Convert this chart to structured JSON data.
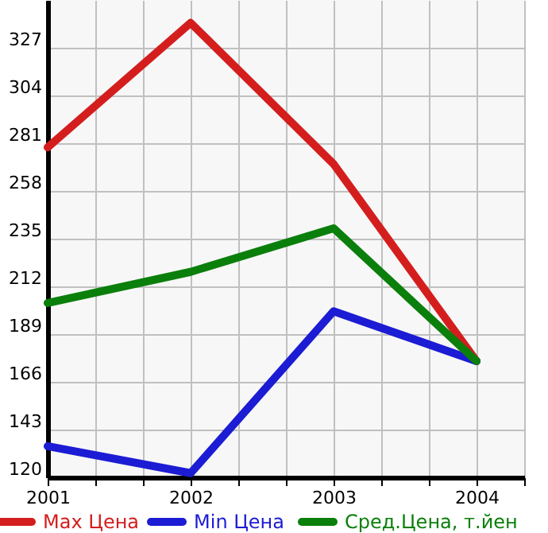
{
  "chart_data": {
    "type": "line",
    "x": [
      2001,
      2002,
      2003,
      2004
    ],
    "series": [
      {
        "name": "Max Цена",
        "color": "#d41e1e",
        "values": [
          279,
          339,
          271,
          176
        ]
      },
      {
        "name": "Min Цена",
        "color": "#1c1cd4",
        "values": [
          135,
          122,
          200,
          176
        ]
      },
      {
        "name": "Сред.Цена, т.йен",
        "color": "#0b7f0b",
        "values": [
          204,
          219,
          240,
          176
        ]
      }
    ],
    "xlim": [
      2001,
      2004.3333
    ],
    "xticks": [
      2001,
      {
        "value": 2001.3333,
        "label": null
      },
      {
        "value": 2001.6667,
        "label": null
      },
      2002,
      {
        "value": 2002.3333,
        "label": null
      },
      {
        "value": 2002.6667,
        "label": null
      },
      2003,
      {
        "value": 2003.3333,
        "label": null
      },
      {
        "value": 2003.6667,
        "label": null
      },
      2004,
      {
        "value": 2004.3333,
        "label": null
      }
    ],
    "ylim": [
      120,
      350
    ],
    "yticks": [
      120,
      143,
      166,
      189,
      212,
      235,
      258,
      281,
      304,
      327
    ],
    "grid": true,
    "legend": "bottom",
    "marker": "none",
    "line_style": "solid"
  }
}
